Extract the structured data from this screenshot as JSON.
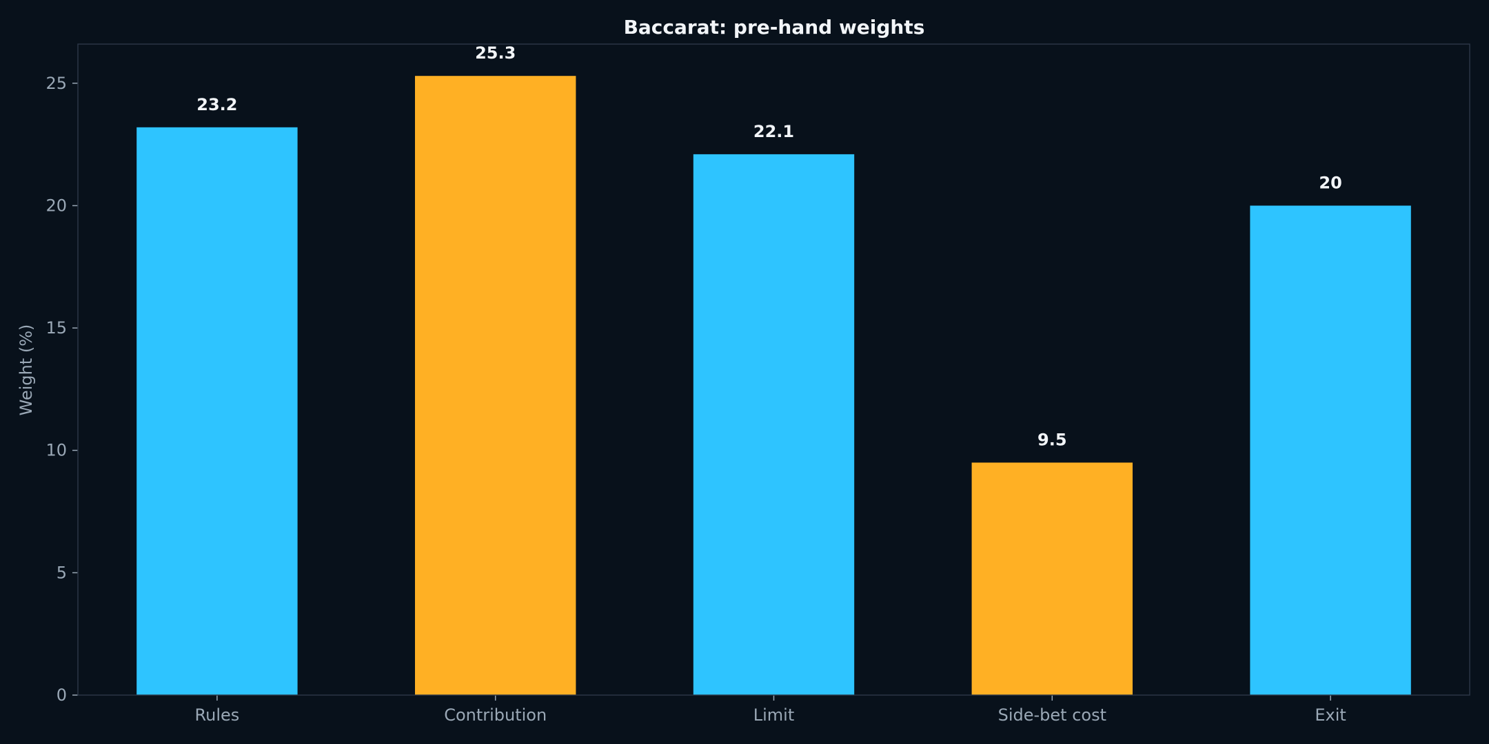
{
  "chart_data": {
    "type": "bar",
    "title": "Baccarat: pre-hand weights",
    "xlabel": "",
    "ylabel": "Weight (%)",
    "categories": [
      "Rules",
      "Contribution",
      "Limit",
      "Side-bet cost",
      "Exit"
    ],
    "values": [
      23.2,
      25.3,
      22.1,
      9.5,
      20
    ],
    "value_labels": [
      "23.2",
      "25.3",
      "22.1",
      "9.5",
      "20"
    ],
    "bar_colors": [
      "#2ec4ff",
      "#ffb024",
      "#2ec4ff",
      "#ffb024",
      "#2ec4ff"
    ],
    "ylim": [
      0,
      26.6
    ],
    "yticks": [
      0,
      5,
      10,
      15,
      20,
      25
    ],
    "grid": false,
    "legend": "none",
    "colors": {
      "background": "#08111b",
      "primary": "#2ec4ff",
      "highlight": "#ffb024",
      "text": "#f2f5f8",
      "muted": "#9aa8b6",
      "frame": "#2a3646"
    }
  }
}
